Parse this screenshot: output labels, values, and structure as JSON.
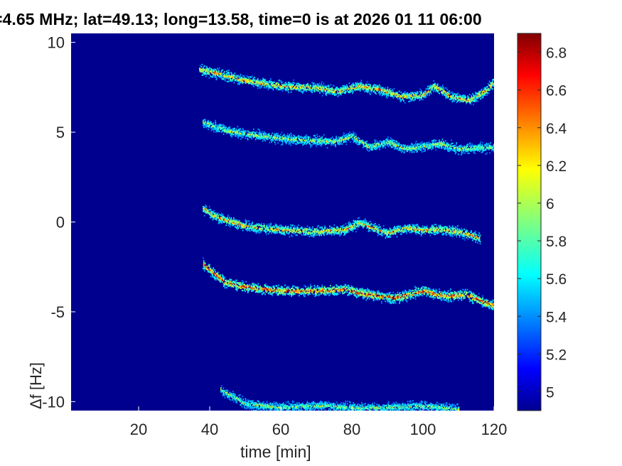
{
  "chart_data": {
    "type": "heatmap",
    "title": "=4.65 MHz;  lat=49.13; long=13.58, time=0 is at 2026 01 11 06:00",
    "xlabel": "time [min]",
    "ylabel": "Δf [Hz]",
    "xlim": [
      1,
      120
    ],
    "ylim": [
      -10.5,
      10.5
    ],
    "xticks": [
      "20",
      "40",
      "60",
      "80",
      "100",
      "120"
    ],
    "yticks": [
      "10",
      "5",
      "0",
      "-5",
      "-10"
    ],
    "colorbar": {
      "colormap": "jet",
      "clim": [
        4.9,
        6.9
      ],
      "ticks": [
        "6.8",
        "6.6",
        "6.4",
        "6.2",
        "6",
        "5.8",
        "5.6",
        "5.4",
        "5.2",
        "5"
      ]
    },
    "background_color": "#00008f",
    "traces": [
      {
        "x": [
          37,
          42,
          50,
          60,
          70,
          76,
          82,
          88,
          94,
          100,
          103,
          108,
          113,
          118,
          120
        ],
        "y": [
          8.5,
          8.3,
          7.9,
          7.6,
          7.5,
          7.3,
          7.6,
          7.4,
          7.0,
          7.1,
          7.6,
          7.0,
          6.8,
          7.4,
          7.9
        ],
        "intensity": 0.75
      },
      {
        "x": [
          38,
          45,
          55,
          65,
          75,
          80,
          85,
          90,
          95,
          105,
          110,
          120
        ],
        "y": [
          5.6,
          5.1,
          4.8,
          4.6,
          4.5,
          4.8,
          4.2,
          4.5,
          4.1,
          4.4,
          4.1,
          4.2
        ],
        "intensity": 0.55
      },
      {
        "x": [
          38,
          42,
          50,
          60,
          70,
          78,
          82,
          90,
          95,
          100,
          106,
          112,
          116
        ],
        "y": [
          0.8,
          0.3,
          -0.2,
          -0.4,
          -0.5,
          -0.4,
          0.0,
          -0.6,
          -0.3,
          -0.4,
          -0.4,
          -0.6,
          -0.9
        ],
        "intensity": 0.75
      },
      {
        "x": [
          38,
          44,
          50,
          60,
          70,
          78,
          84,
          92,
          100,
          106,
          112,
          118,
          120
        ],
        "y": [
          -2.3,
          -3.3,
          -3.6,
          -3.8,
          -3.8,
          -3.7,
          -4.0,
          -4.2,
          -3.8,
          -4.1,
          -4.0,
          -4.5,
          -4.6
        ],
        "intensity": 0.95
      },
      {
        "x": [
          43,
          50,
          60,
          70,
          80,
          90,
          100,
          110
        ],
        "y": [
          -9.3,
          -10.1,
          -10.3,
          -10.2,
          -10.3,
          -10.3,
          -10.2,
          -10.4
        ],
        "intensity": 0.5
      }
    ]
  }
}
